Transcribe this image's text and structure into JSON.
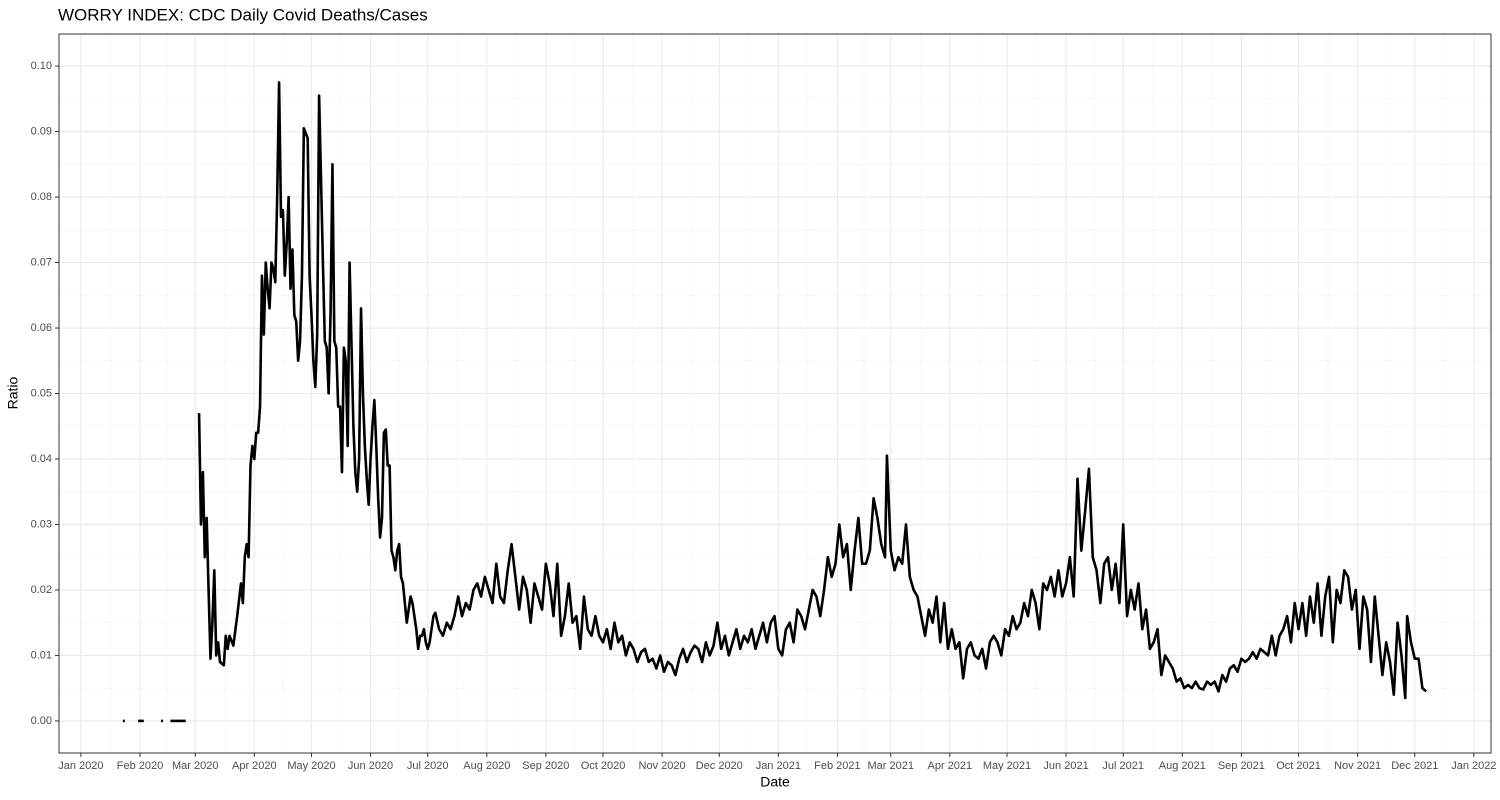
{
  "chart_data": {
    "type": "line",
    "title": "WORRY INDEX: CDC Daily Covid Deaths/Cases",
    "x_label": "Date",
    "y_label": "Ratio",
    "color": "#000000",
    "grid": true,
    "xlim": [
      -11.5,
      740
    ],
    "xticks": [
      {
        "value": 0,
        "label": "Jan 2020"
      },
      {
        "value": 31,
        "label": "Feb 2020"
      },
      {
        "value": 60,
        "label": "Mar 2020"
      },
      {
        "value": 91,
        "label": "Apr 2020"
      },
      {
        "value": 121,
        "label": "May 2020"
      },
      {
        "value": 152,
        "label": "Jun 2020"
      },
      {
        "value": 182,
        "label": "Jul 2020"
      },
      {
        "value": 213,
        "label": "Aug 2020"
      },
      {
        "value": 244,
        "label": "Sep 2020"
      },
      {
        "value": 274,
        "label": "Oct 2020"
      },
      {
        "value": 305,
        "label": "Nov 2020"
      },
      {
        "value": 335,
        "label": "Dec 2020"
      },
      {
        "value": 366,
        "label": "Jan 2021"
      },
      {
        "value": 397,
        "label": "Feb 2021"
      },
      {
        "value": 425,
        "label": "Mar 2021"
      },
      {
        "value": 456,
        "label": "Apr 2021"
      },
      {
        "value": 486,
        "label": "May 2021"
      },
      {
        "value": 517,
        "label": "Jun 2021"
      },
      {
        "value": 547,
        "label": "Jul 2021"
      },
      {
        "value": 578,
        "label": "Aug 2021"
      },
      {
        "value": 609,
        "label": "Sep 2021"
      },
      {
        "value": 639,
        "label": "Oct 2021"
      },
      {
        "value": 670,
        "label": "Nov 2021"
      },
      {
        "value": 700,
        "label": "Dec 2021"
      },
      {
        "value": 731,
        "label": "Jan 2022"
      }
    ],
    "ylim": [
      -0.0049,
      0.1049
    ],
    "yticks": [
      {
        "value": 0,
        "label": "0.00"
      },
      {
        "value": 0.01,
        "label": "0.01"
      },
      {
        "value": 0.02,
        "label": "0.02"
      },
      {
        "value": 0.03,
        "label": "0.03"
      },
      {
        "value": 0.04,
        "label": "0.04"
      },
      {
        "value": 0.05,
        "label": "0.05"
      },
      {
        "value": 0.06,
        "label": "0.06"
      },
      {
        "value": 0.07,
        "label": "0.07"
      },
      {
        "value": 0.08,
        "label": "0.08"
      },
      {
        "value": 0.09,
        "label": "0.09"
      },
      {
        "value": 0.1,
        "label": "0.10"
      }
    ],
    "x": [
      22,
      26,
      30,
      31,
      32,
      33,
      37,
      42,
      45,
      47,
      49,
      51,
      53,
      55,
      58,
      62,
      63,
      64,
      65,
      66,
      67,
      68,
      69,
      70,
      71,
      72,
      73,
      75,
      76,
      77,
      78,
      80,
      82,
      84,
      85,
      86,
      87,
      88,
      89,
      90,
      91,
      92,
      93,
      94,
      95,
      96,
      97,
      98,
      99,
      100,
      101,
      102,
      103,
      104,
      105,
      106,
      107,
      108,
      109,
      110,
      111,
      112,
      113,
      114,
      115,
      116,
      117,
      119,
      120,
      121,
      122,
      123,
      124,
      125,
      127,
      128,
      129,
      130,
      131,
      132,
      133,
      134,
      135,
      136,
      137,
      138,
      139,
      140,
      141,
      143,
      144,
      145,
      146,
      147,
      148,
      149,
      150,
      151,
      152,
      153,
      154,
      155,
      156,
      157,
      158,
      159,
      160,
      161,
      162,
      163,
      164,
      165,
      166,
      167,
      168,
      169,
      170,
      171,
      172,
      173,
      174,
      175,
      176,
      177,
      178,
      179,
      180,
      181,
      182,
      183,
      184,
      185,
      186,
      188,
      190,
      192,
      194,
      196,
      198,
      200,
      202,
      204,
      206,
      208,
      210,
      212,
      214,
      216,
      218,
      220,
      222,
      224,
      226,
      228,
      230,
      232,
      234,
      236,
      238,
      240,
      242,
      244,
      246,
      248,
      250,
      252,
      254,
      256,
      258,
      260,
      262,
      264,
      266,
      268,
      270,
      272,
      274,
      276,
      278,
      280,
      282,
      284,
      286,
      288,
      290,
      292,
      294,
      296,
      298,
      300,
      302,
      304,
      306,
      308,
      310,
      312,
      314,
      316,
      318,
      320,
      322,
      324,
      326,
      328,
      330,
      332,
      334,
      336,
      338,
      340,
      342,
      344,
      346,
      348,
      350,
      352,
      354,
      356,
      358,
      360,
      362,
      364,
      366,
      368,
      370,
      372,
      374,
      376,
      378,
      380,
      382,
      384,
      386,
      388,
      390,
      392,
      394,
      396,
      398,
      400,
      402,
      404,
      406,
      408,
      410,
      412,
      414,
      416,
      418,
      420,
      422,
      423,
      425,
      427,
      429,
      431,
      433,
      435,
      437,
      439,
      441,
      443,
      445,
      447,
      449,
      451,
      453,
      455,
      457,
      459,
      461,
      463,
      465,
      467,
      469,
      471,
      473,
      475,
      477,
      479,
      481,
      483,
      485,
      487,
      489,
      491,
      493,
      495,
      497,
      499,
      501,
      503,
      505,
      507,
      509,
      511,
      513,
      515,
      517,
      519,
      521,
      523,
      525,
      527,
      529,
      531,
      533,
      535,
      537,
      539,
      541,
      543,
      545,
      547,
      549,
      551,
      553,
      555,
      557,
      559,
      561,
      563,
      565,
      567,
      569,
      571,
      573,
      575,
      577,
      579,
      581,
      583,
      585,
      587,
      589,
      591,
      593,
      595,
      597,
      599,
      601,
      603,
      605,
      607,
      609,
      611,
      613,
      615,
      617,
      619,
      621,
      623,
      625,
      627,
      629,
      631,
      633,
      635,
      637,
      639,
      641,
      643,
      645,
      647,
      649,
      651,
      653,
      655,
      657,
      659,
      661,
      663,
      665,
      667,
      669,
      671,
      673,
      675,
      677,
      679,
      681,
      683,
      685,
      687,
      689,
      691,
      693,
      695,
      696,
      698,
      700,
      702,
      704,
      706
    ],
    "values": [
      0,
      null,
      0,
      0,
      0,
      0,
      null,
      0,
      null,
      0,
      0,
      0,
      0,
      0,
      null,
      0.047,
      0.03,
      0.038,
      0.025,
      0.031,
      0.02,
      0.0095,
      0.015,
      0.023,
      0.01,
      0.012,
      0.009,
      0.0085,
      0.013,
      0.011,
      0.013,
      0.0115,
      0.016,
      0.021,
      0.018,
      0.025,
      0.027,
      0.025,
      0.039,
      0.042,
      0.04,
      0.044,
      0.044,
      0.048,
      0.068,
      0.059,
      0.07,
      0.066,
      0.063,
      0.07,
      0.069,
      0.067,
      0.08,
      0.0975,
      0.077,
      0.078,
      0.068,
      0.073,
      0.08,
      0.066,
      0.072,
      0.062,
      0.061,
      0.055,
      0.058,
      0.068,
      0.0905,
      0.089,
      0.068,
      0.062,
      0.055,
      0.051,
      0.059,
      0.0955,
      0.07,
      0.058,
      0.057,
      0.05,
      0.062,
      0.085,
      0.058,
      0.057,
      0.048,
      0.048,
      0.038,
      0.057,
      0.055,
      0.042,
      0.07,
      0.045,
      0.038,
      0.035,
      0.04,
      0.063,
      0.05,
      0.042,
      0.037,
      0.033,
      0.04,
      0.045,
      0.049,
      0.042,
      0.034,
      0.028,
      0.031,
      0.044,
      0.0445,
      0.039,
      0.039,
      0.026,
      0.025,
      0.023,
      0.026,
      0.027,
      0.022,
      0.021,
      0.018,
      0.015,
      0.017,
      0.019,
      0.018,
      0.016,
      0.014,
      0.011,
      0.013,
      0.013,
      0.014,
      0.012,
      0.011,
      0.012,
      0.014,
      0.016,
      0.0165,
      0.014,
      0.013,
      0.015,
      0.014,
      0.016,
      0.019,
      0.016,
      0.018,
      0.017,
      0.02,
      0.021,
      0.019,
      0.022,
      0.02,
      0.018,
      0.024,
      0.019,
      0.018,
      0.023,
      0.027,
      0.022,
      0.017,
      0.022,
      0.02,
      0.015,
      0.021,
      0.019,
      0.017,
      0.024,
      0.021,
      0.016,
      0.024,
      0.013,
      0.016,
      0.021,
      0.015,
      0.016,
      0.011,
      0.019,
      0.014,
      0.013,
      0.016,
      0.013,
      0.012,
      0.014,
      0.011,
      0.015,
      0.012,
      0.013,
      0.01,
      0.012,
      0.011,
      0.009,
      0.0105,
      0.011,
      0.009,
      0.0095,
      0.008,
      0.01,
      0.0075,
      0.009,
      0.0085,
      0.007,
      0.0095,
      0.011,
      0.009,
      0.0105,
      0.0115,
      0.011,
      0.009,
      0.012,
      0.01,
      0.0115,
      0.015,
      0.011,
      0.013,
      0.01,
      0.012,
      0.014,
      0.011,
      0.013,
      0.012,
      0.014,
      0.011,
      0.013,
      0.015,
      0.012,
      0.015,
      0.016,
      0.011,
      0.01,
      0.014,
      0.015,
      0.012,
      0.017,
      0.016,
      0.014,
      0.017,
      0.02,
      0.019,
      0.016,
      0.02,
      0.025,
      0.022,
      0.024,
      0.03,
      0.025,
      0.027,
      0.02,
      0.026,
      0.031,
      0.024,
      0.024,
      0.026,
      0.034,
      0.031,
      0.027,
      0.025,
      0.0405,
      0.026,
      0.023,
      0.025,
      0.024,
      0.03,
      0.022,
      0.02,
      0.019,
      0.016,
      0.013,
      0.017,
      0.015,
      0.019,
      0.012,
      0.018,
      0.011,
      0.014,
      0.011,
      0.012,
      0.0065,
      0.011,
      0.012,
      0.01,
      0.0095,
      0.011,
      0.008,
      0.012,
      0.013,
      0.012,
      0.01,
      0.014,
      0.013,
      0.016,
      0.014,
      0.015,
      0.018,
      0.016,
      0.02,
      0.018,
      0.014,
      0.021,
      0.02,
      0.022,
      0.019,
      0.023,
      0.019,
      0.021,
      0.025,
      0.019,
      0.037,
      0.026,
      0.032,
      0.0385,
      0.025,
      0.023,
      0.018,
      0.024,
      0.025,
      0.02,
      0.024,
      0.018,
      0.03,
      0.016,
      0.02,
      0.017,
      0.021,
      0.014,
      0.017,
      0.011,
      0.012,
      0.014,
      0.007,
      0.01,
      0.009,
      0.008,
      0.006,
      0.0065,
      0.005,
      0.0055,
      0.005,
      0.006,
      0.005,
      0.0048,
      0.006,
      0.0055,
      0.006,
      0.0045,
      0.007,
      0.006,
      0.008,
      0.0085,
      0.0075,
      0.0095,
      0.009,
      0.0095,
      0.0105,
      0.0095,
      0.011,
      0.0105,
      0.01,
      0.013,
      0.01,
      0.013,
      0.014,
      0.016,
      0.012,
      0.018,
      0.014,
      0.018,
      0.013,
      0.019,
      0.015,
      0.021,
      0.013,
      0.019,
      0.022,
      0.012,
      0.02,
      0.018,
      0.023,
      0.022,
      0.017,
      0.02,
      0.011,
      0.019,
      0.017,
      0.009,
      0.019,
      0.013,
      0.007,
      0.012,
      0.009,
      0.004,
      0.015,
      0.01,
      0.0035,
      0.016,
      0.012,
      0.0095,
      0.0095,
      0.005,
      0.0045
    ]
  }
}
